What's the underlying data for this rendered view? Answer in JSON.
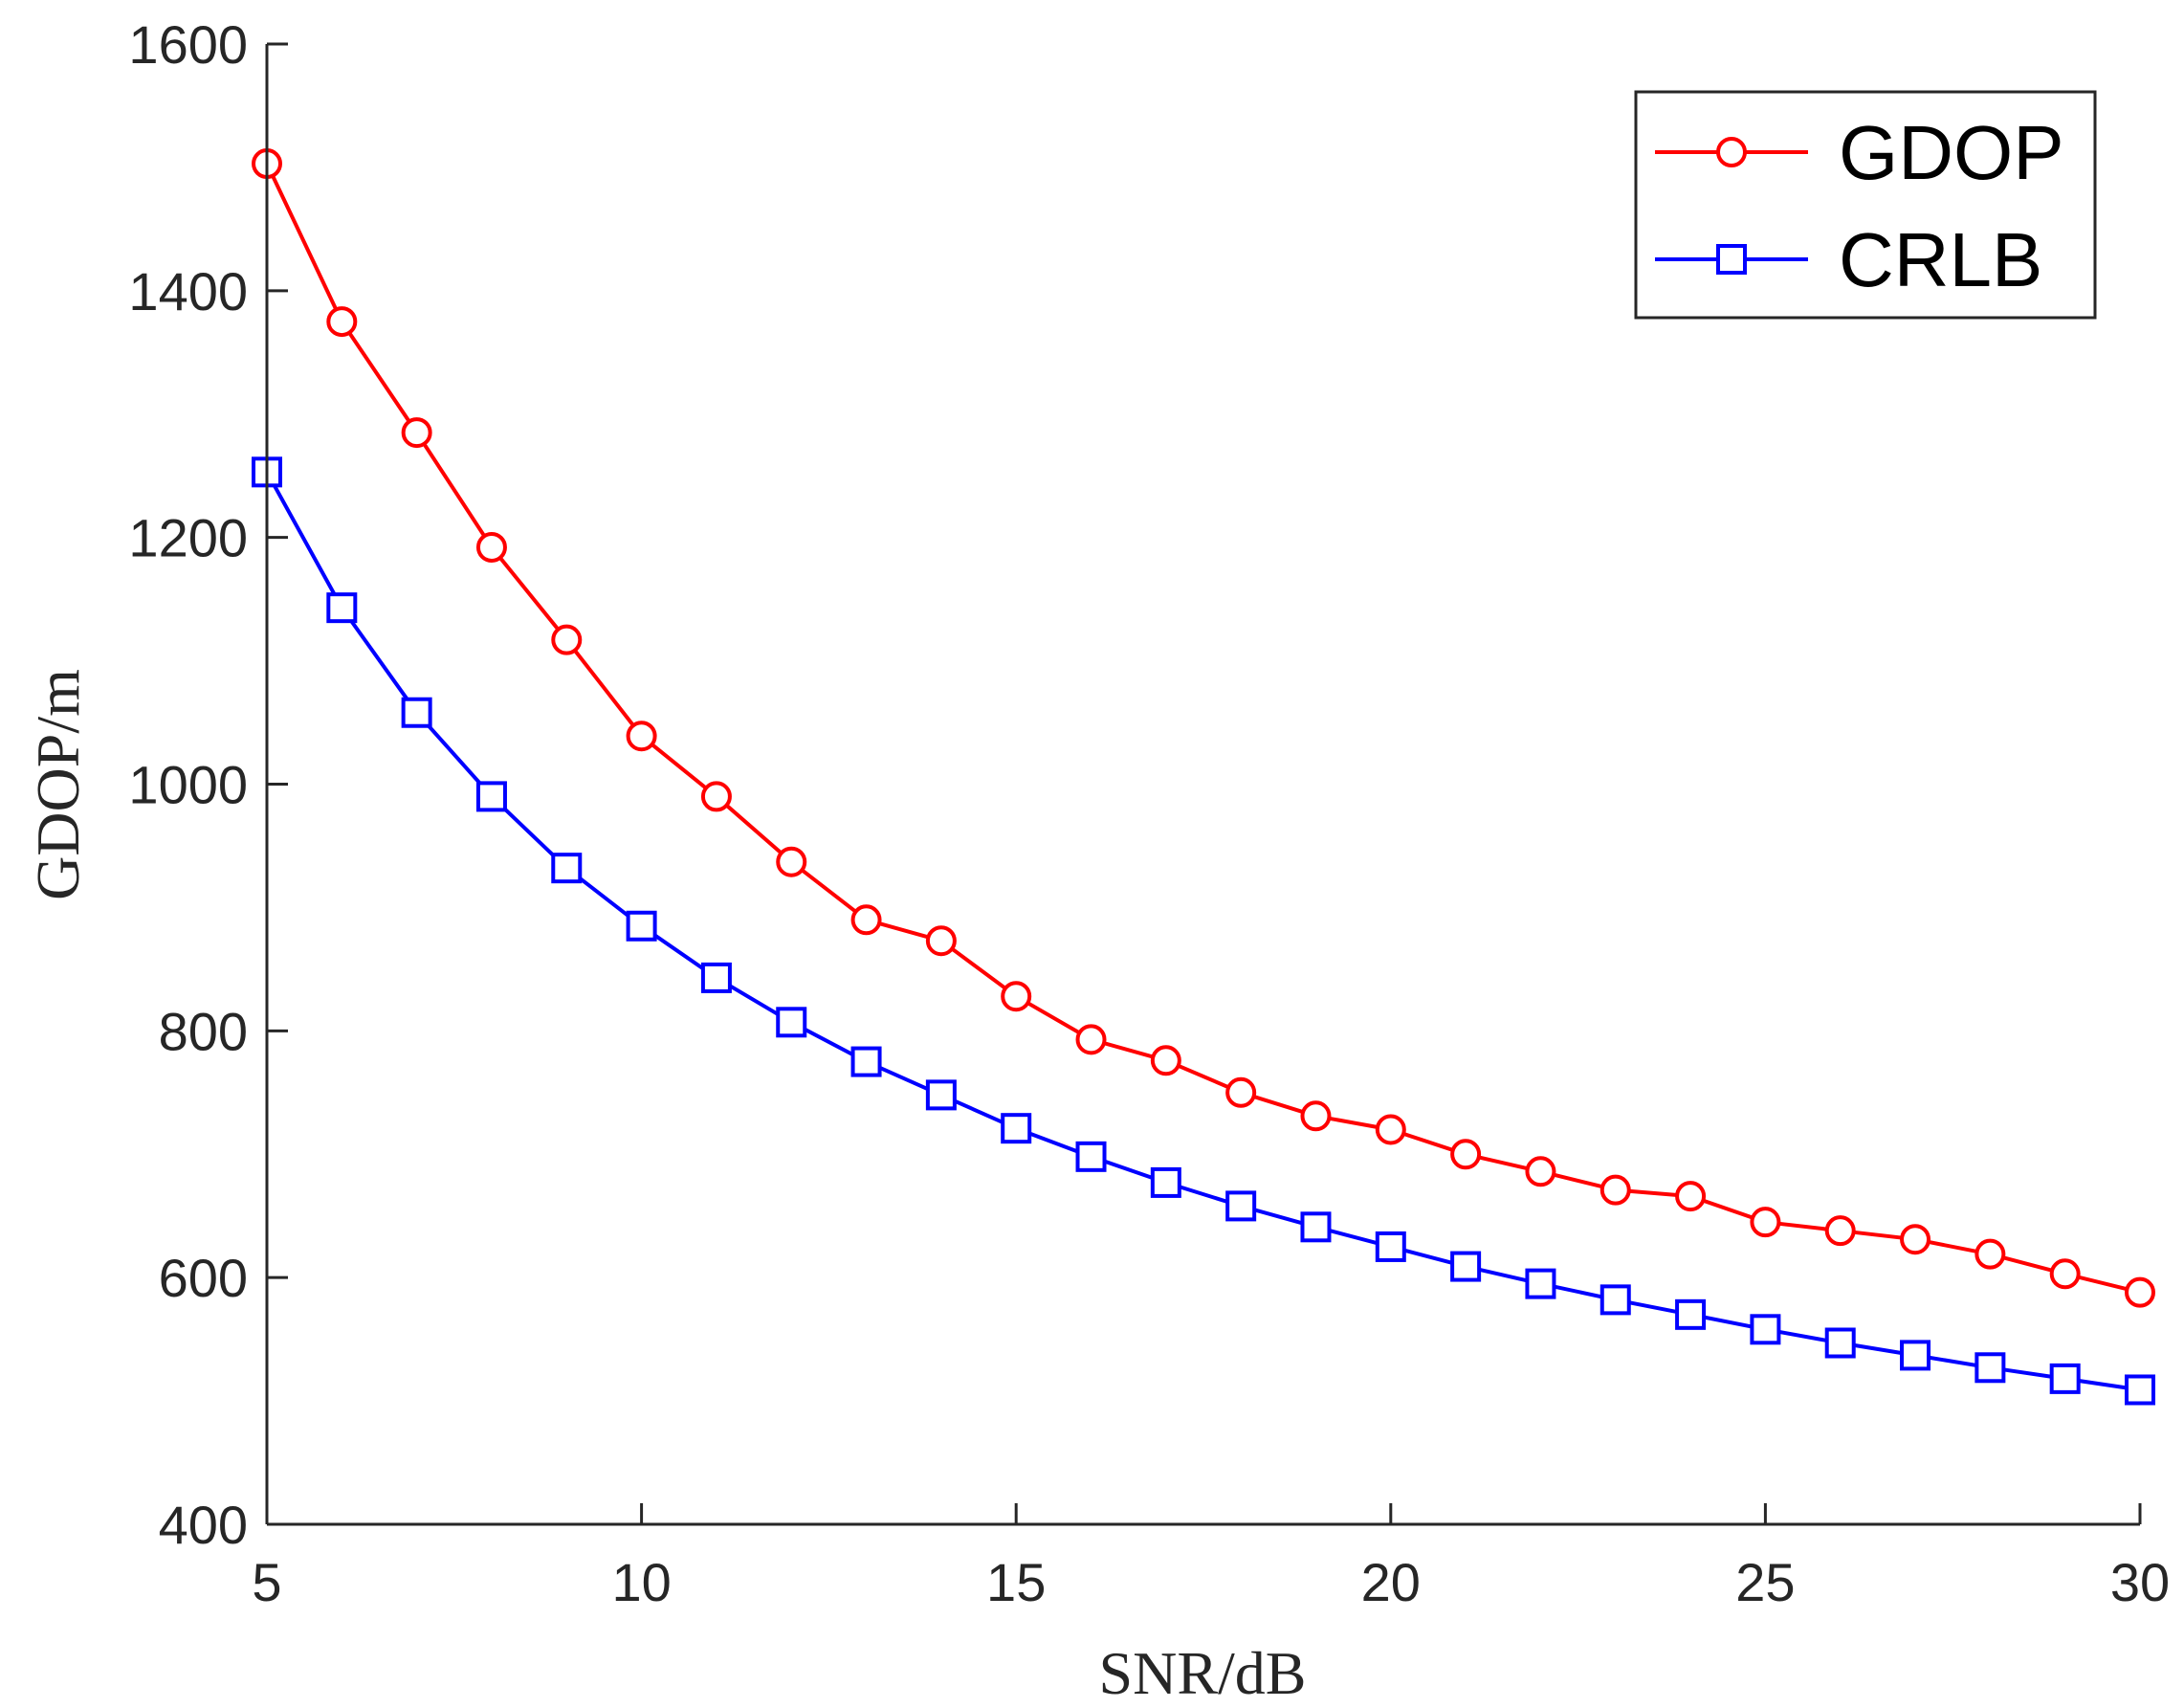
{
  "chart_data": {
    "type": "line",
    "title": "",
    "xlabel": "SNR/dB",
    "ylabel": "GDOP/m",
    "xlim": [
      5,
      30
    ],
    "ylim": [
      400,
      1600
    ],
    "xticks": [
      5,
      10,
      15,
      20,
      25,
      30
    ],
    "yticks": [
      400,
      600,
      800,
      1000,
      1200,
      1400,
      1600
    ],
    "grid": false,
    "legend_position": "top-right",
    "x": [
      5,
      6,
      7,
      8,
      9,
      10,
      11,
      12,
      13,
      14,
      15,
      16,
      17,
      18,
      19,
      20,
      21,
      22,
      23,
      24,
      25,
      26,
      27,
      28,
      29,
      30
    ],
    "series": [
      {
        "name": "GDOP",
        "color": "#ff0000",
        "marker": "circle",
        "values": [
          1503,
          1375,
          1285,
          1192,
          1117,
          1039,
          990,
          937,
          890,
          873,
          828,
          793,
          776,
          750,
          731,
          720,
          700,
          686,
          671,
          666,
          645,
          638,
          631,
          619,
          603,
          588
        ]
      },
      {
        "name": "CRLB",
        "color": "#0000ff",
        "marker": "square",
        "values": [
          1253,
          1143,
          1058,
          990,
          932,
          885,
          843,
          807,
          775,
          748,
          721,
          698,
          677,
          658,
          641,
          625,
          609,
          595,
          582,
          570,
          558,
          547,
          537,
          527,
          518,
          509
        ]
      }
    ]
  }
}
